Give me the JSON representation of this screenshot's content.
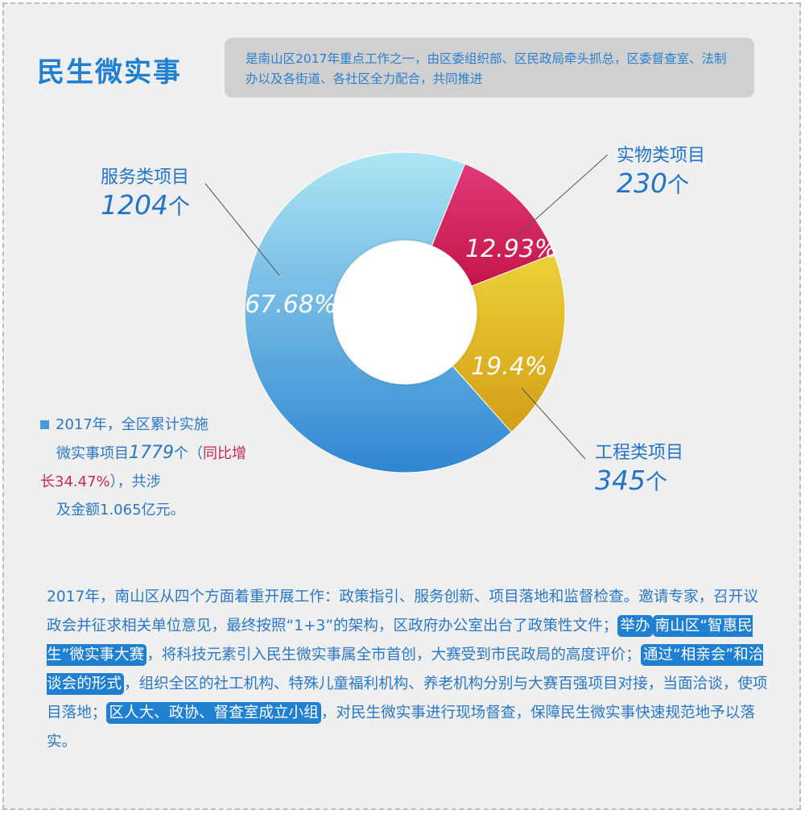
{
  "title": "民生微实事",
  "intro": "是南山区2017年重点工作之一，由区委组织部、区民政局牵头抓总，区委督查室、法制办以及各街道、各社区全力配合，共同推进",
  "chart_data": {
    "type": "pie",
    "donut": true,
    "slices": [
      {
        "name": "服务类项目",
        "value": 1204,
        "percent": "67.68%",
        "unit": "个",
        "color": "#4aa1df"
      },
      {
        "name": "实物类项目",
        "value": 230,
        "percent": "12.93%",
        "unit": "个",
        "color": "#d2306a"
      },
      {
        "name": "工程类项目",
        "value": 345,
        "percent": "19.4%",
        "unit": "个",
        "color": "#e1b52a"
      }
    ]
  },
  "summary": {
    "part1": "2017年，全区累计实施",
    "part2": "微实事项目",
    "count": "1779",
    "part3": "个（",
    "growth": "同比增长34.47%",
    "part4": "），共涉",
    "part5": "及金额1.065亿元。"
  },
  "body": {
    "t1": "2017年，南山区从四个方面着重开展工作：政策指引、服务创新、项目落地和监督检查。邀请专家，召开议政会并征求相关单位意见，最终按照“1+3”的架构，区政府办公室出台了政策性文件；",
    "h1a": "举办",
    "h1b": "南山区“智惠民生”微实事大赛",
    "t2": "，将科技元素引入民生微实事属全市首创，大赛受到市民政局的高度评价；",
    "h2": "通过“相亲会”和洽谈会的形式",
    "t3": "，组织全区的社工机构、特殊儿童福利机构、养老机构分别与大赛百强项目对接，当面洽谈，使项目落地；",
    "h3": "区人大、政协、督查室成立小组",
    "t4": "，对民生微实事进行现场督查，保障民生微实事快速规范地予以落实。"
  }
}
